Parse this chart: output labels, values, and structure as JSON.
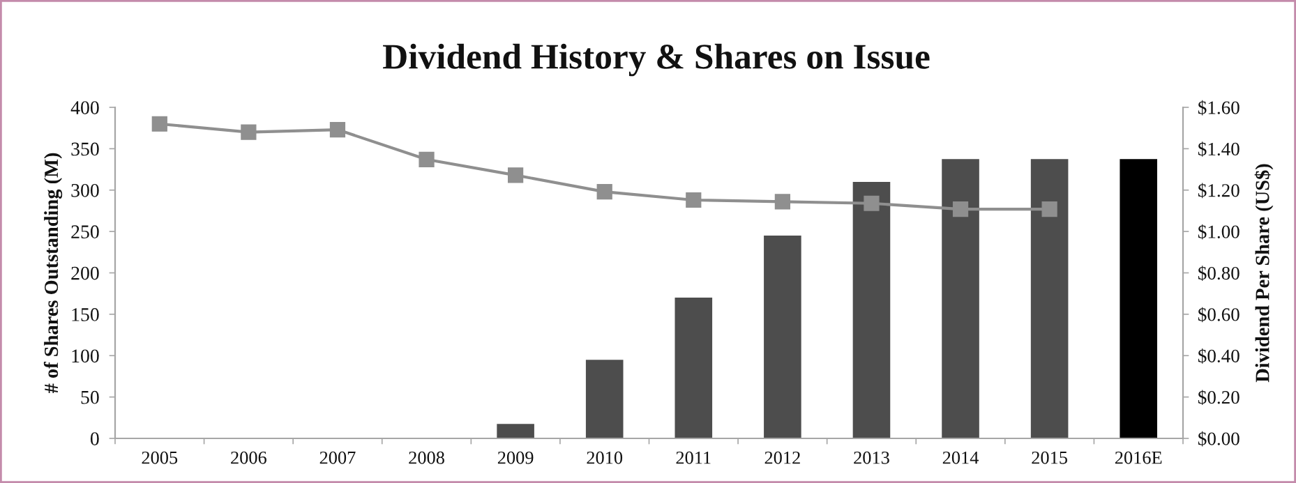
{
  "chart_data": {
    "type": "bar",
    "title": "Dividend History & Shares on Issue",
    "ylabel": "# of Shares Outstanding (M)",
    "y2label": "Dividend Per Share (US$)",
    "categories": [
      "2005",
      "2006",
      "2007",
      "2008",
      "2009",
      "2010",
      "2011",
      "2012",
      "2013",
      "2014",
      "2015",
      "2016E"
    ],
    "series": [
      {
        "axis": "y2",
        "colors": [
          "#4d4d4d",
          "#4d4d4d",
          "#4d4d4d",
          "#4d4d4d",
          "#4d4d4d",
          "#4d4d4d",
          "#4d4d4d",
          "#4d4d4d",
          "#4d4d4d",
          "#4d4d4d",
          "#4d4d4d",
          "#000000"
        ],
        "values": [
          null,
          null,
          null,
          null,
          0.07,
          0.38,
          0.68,
          0.98,
          1.24,
          1.35,
          1.35,
          1.35
        ]
      },
      {
        "type": "line",
        "axis": "y",
        "color": "#8f8f8f",
        "marker": "square",
        "values": [
          380,
          370,
          373,
          337,
          318,
          298,
          288,
          286,
          284,
          277,
          277,
          null
        ]
      }
    ],
    "ylim": [
      0,
      400
    ],
    "yticks": [
      0,
      50,
      100,
      150,
      200,
      250,
      300,
      350,
      400
    ],
    "y2lim": [
      0,
      1.6
    ],
    "y2ticks": [
      {
        "value": 0,
        "label": "$0.00"
      },
      {
        "value": 0.2,
        "label": "$0.20"
      },
      {
        "value": 0.4,
        "label": "$0.40"
      },
      {
        "value": 0.6,
        "label": "$0.60"
      },
      {
        "value": 0.8,
        "label": "$0.80"
      },
      {
        "value": 1.0,
        "label": "$1.00"
      },
      {
        "value": 1.2,
        "label": "$1.20"
      },
      {
        "value": 1.4,
        "label": "$1.40"
      },
      {
        "value": 1.6,
        "label": "$1.60"
      }
    ]
  }
}
